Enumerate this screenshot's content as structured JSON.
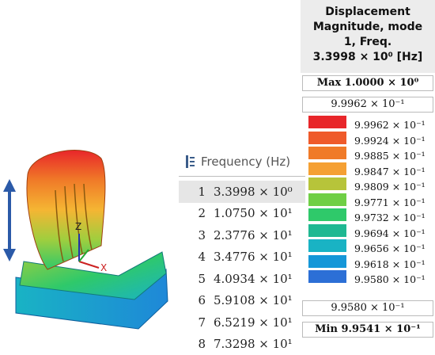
{
  "frequency_table": {
    "header": "Frequency (Hz)",
    "icon": "frequency-list-icon",
    "selected_mode": "1",
    "rows": [
      {
        "mode": "1",
        "value": "3.3998 × 10⁰"
      },
      {
        "mode": "2",
        "value": "1.0750 × 10¹"
      },
      {
        "mode": "3",
        "value": "2.3776 × 10¹"
      },
      {
        "mode": "4",
        "value": "3.4776 × 10¹"
      },
      {
        "mode": "5",
        "value": "4.0934 × 10¹"
      },
      {
        "mode": "6",
        "value": "5.9108 × 10¹"
      },
      {
        "mode": "7",
        "value": "6.5219 × 10¹"
      },
      {
        "mode": "8",
        "value": "7.3298 × 10¹"
      }
    ]
  },
  "legend": {
    "title_line1": "Displacement",
    "title_line2": "Magnitude, mode",
    "title_line3": "1, Freq.",
    "title_line4": "3.3998 × 10⁰ [Hz]",
    "max_label": "Max 1.0000 × 10⁰",
    "top_value": "9.9962 × 10⁻¹",
    "bottom_value": "9.9580 × 10⁻¹",
    "min_label": "Min 9.9541 × 10⁻¹",
    "bands": [
      {
        "color": "#e8262a",
        "label": "9.9962 × 10⁻¹"
      },
      {
        "color": "#ef5a2a",
        "label": "9.9924 × 10⁻¹"
      },
      {
        "color": "#f07a28",
        "label": "9.9885 × 10⁻¹"
      },
      {
        "color": "#f5a033",
        "label": "9.9847 × 10⁻¹"
      },
      {
        "color": "#b7c43a",
        "label": "9.9809 × 10⁻¹"
      },
      {
        "color": "#6fcf45",
        "label": "9.9771 × 10⁻¹"
      },
      {
        "color": "#2fc96a",
        "label": "9.9732 × 10⁻¹"
      },
      {
        "color": "#1fb892",
        "label": "9.9694 × 10⁻¹"
      },
      {
        "color": "#19b3c4",
        "label": "9.9656 × 10⁻¹"
      },
      {
        "color": "#1597d8",
        "label": "9.9618 × 10⁻¹"
      },
      {
        "color": "#2c6fd6",
        "label": "9.9580 × 10⁻¹"
      }
    ]
  },
  "axes": {
    "x": "X",
    "z": "Z"
  },
  "colors": {
    "arrow": "#2b5aa8",
    "seat_base": "#1e88d8"
  }
}
